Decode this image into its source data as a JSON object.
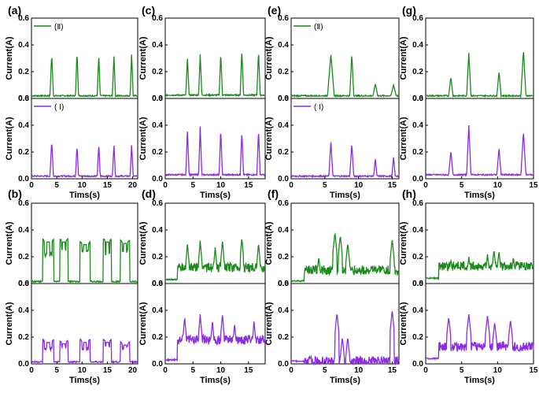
{
  "chart_data": {
    "type": "line",
    "description_layout": "4 columns x 2 rows of panels; each panel has two stacked subplots sharing the time axis",
    "colors": {
      "II": "#1a8a1a",
      "I": "#8b2be2"
    },
    "ylabel": "Current(A)",
    "xlabel": "Tims(s)",
    "ylim": [
      0,
      0.6
    ],
    "yticks": [
      "0.0",
      "0.2",
      "0.4",
      "0.6"
    ],
    "legend": {
      "II": "(Ⅱ)",
      "I": "( Ⅰ)"
    },
    "panels": [
      {
        "label": "(a)",
        "xlim": [
          0,
          21
        ],
        "xticks": [
          0,
          5,
          10,
          15,
          20
        ],
        "legend": true,
        "style": "peaks",
        "series": [
          {
            "name": "(Ⅱ)",
            "peaks": [
              [
                4,
                0.33,
                0.35
              ],
              [
                9,
                0.35,
                0.3
              ],
              [
                13.3,
                0.33,
                0.3
              ],
              [
                16.3,
                0.33,
                0.3
              ],
              [
                19.8,
                0.34,
                0.3
              ]
            ],
            "baseline": 0.02
          },
          {
            "name": "( Ⅰ)",
            "peaks": [
              [
                4,
                0.28,
                0.35
              ],
              [
                9,
                0.25,
                0.3
              ],
              [
                13.3,
                0.26,
                0.3
              ],
              [
                16.3,
                0.26,
                0.3
              ],
              [
                19.8,
                0.26,
                0.3
              ]
            ],
            "baseline": 0.02
          }
        ]
      },
      {
        "label": "(c)",
        "xlim": [
          0,
          18
        ],
        "xticks": [
          0,
          5,
          10,
          15
        ],
        "legend": false,
        "style": "peaks",
        "series": [
          {
            "name": "(Ⅱ)",
            "peaks": [
              [
                4,
                0.31,
                0.3
              ],
              [
                6.3,
                0.33,
                0.3
              ],
              [
                10,
                0.34,
                0.3
              ],
              [
                13.8,
                0.36,
                0.3
              ],
              [
                16.8,
                0.35,
                0.3
              ]
            ],
            "baseline": 0.025
          },
          {
            "name": "( Ⅰ)",
            "peaks": [
              [
                4,
                0.37,
                0.3
              ],
              [
                6.3,
                0.39,
                0.3
              ],
              [
                10,
                0.37,
                0.3
              ],
              [
                13.8,
                0.35,
                0.3
              ],
              [
                16.8,
                0.36,
                0.3
              ]
            ],
            "baseline": 0.03
          }
        ]
      },
      {
        "label": "(e)",
        "xlim": [
          0,
          16
        ],
        "xticks": [
          0,
          5,
          10,
          15
        ],
        "legend": true,
        "style": "peaks",
        "series": [
          {
            "name": "(Ⅱ)",
            "peaks": [
              [
                5.9,
                0.33,
                0.5
              ],
              [
                9,
                0.33,
                0.3
              ],
              [
                12.5,
                0.11,
                0.35
              ],
              [
                15.2,
                0.1,
                0.4
              ]
            ],
            "baseline": 0.02
          },
          {
            "name": "( Ⅰ)",
            "peaks": [
              [
                5.9,
                0.28,
                0.3
              ],
              [
                9,
                0.26,
                0.3
              ],
              [
                12.5,
                0.15,
                0.25
              ],
              [
                15.2,
                0.16,
                0.25
              ]
            ],
            "baseline": 0.02
          }
        ]
      },
      {
        "label": "(g)",
        "xlim": [
          0,
          15
        ],
        "xticks": [
          0,
          5,
          10,
          15
        ],
        "legend": false,
        "style": "peaks",
        "series": [
          {
            "name": "(Ⅱ)",
            "peaks": [
              [
                3.5,
                0.16,
                0.3
              ],
              [
                6,
                0.34,
                0.3
              ],
              [
                10.2,
                0.2,
                0.3
              ],
              [
                13.6,
                0.36,
                0.35
              ]
            ],
            "baseline": 0.02
          },
          {
            "name": "( Ⅰ)",
            "peaks": [
              [
                3.5,
                0.21,
                0.3
              ],
              [
                6,
                0.4,
                0.3
              ],
              [
                10.2,
                0.23,
                0.3
              ],
              [
                13.6,
                0.35,
                0.35
              ]
            ],
            "baseline": 0.03
          }
        ]
      },
      {
        "label": "(b)",
        "xlim": [
          0,
          21
        ],
        "xticks": [
          0,
          5,
          10,
          15,
          20
        ],
        "legend": false,
        "style": "plateaus",
        "series": [
          {
            "name": "(Ⅱ)",
            "plateaus": [
              [
                2.2,
                4.4,
                0.2,
                0.33
              ],
              [
                5.6,
                7.2,
                0.24,
                0.33
              ],
              [
                9.6,
                11.6,
                0.22,
                0.31
              ],
              [
                14.2,
                15.8,
                0.2,
                0.33
              ],
              [
                17.6,
                19.4,
                0.22,
                0.32
              ]
            ],
            "baseline": 0.015
          },
          {
            "name": "( Ⅰ)",
            "plateaus": [
              [
                2.2,
                4.4,
                0.1,
                0.18
              ],
              [
                5.6,
                7.2,
                0.1,
                0.17
              ],
              [
                9.6,
                11.6,
                0.1,
                0.18
              ],
              [
                14.2,
                15.8,
                0.12,
                0.18
              ],
              [
                17.6,
                19.4,
                0.1,
                0.16
              ]
            ],
            "baseline": 0.015
          }
        ]
      },
      {
        "label": "(d)",
        "xlim": [
          0,
          18
        ],
        "xticks": [
          0,
          5,
          10,
          15
        ],
        "legend": false,
        "style": "noisy",
        "series": [
          {
            "name": "(Ⅱ)",
            "spikes": [
              [
                4,
                0.3
              ],
              [
                6.3,
                0.32
              ],
              [
                9,
                0.27
              ],
              [
                10.3,
                0.32
              ],
              [
                13.8,
                0.34
              ],
              [
                16.8,
                0.3
              ]
            ],
            "level": 0.12,
            "baseline": 0.03
          },
          {
            "name": "( Ⅰ)",
            "spikes": [
              [
                3.5,
                0.35
              ],
              [
                6.3,
                0.37
              ],
              [
                8.5,
                0.32
              ],
              [
                10.3,
                0.37
              ],
              [
                12.5,
                0.3
              ],
              [
                16,
                0.32
              ]
            ],
            "level": 0.18,
            "baseline": 0.03
          }
        ]
      },
      {
        "label": "(f)",
        "xlim": [
          0,
          16
        ],
        "xticks": [
          0,
          5,
          10,
          15
        ],
        "legend": false,
        "style": "noisy",
        "series": [
          {
            "name": "(Ⅱ)",
            "spikes": [
              [
                4.1,
                0.2
              ],
              [
                6.5,
                0.38
              ],
              [
                7.3,
                0.36
              ],
              [
                8.4,
                0.3
              ],
              [
                15,
                0.33
              ]
            ],
            "level": 0.1,
            "baseline": 0.02
          },
          {
            "name": "( Ⅰ)",
            "spikes": [
              [
                6.8,
                0.38
              ],
              [
                7.6,
                0.2
              ],
              [
                8.4,
                0.2
              ],
              [
                15,
                0.4
              ]
            ],
            "level": 0.02,
            "baseline": 0.02
          }
        ]
      },
      {
        "label": "(h)",
        "xlim": [
          0,
          15
        ],
        "xticks": [
          0,
          5,
          10,
          15
        ],
        "legend": false,
        "style": "noisy",
        "series": [
          {
            "name": "(Ⅱ)",
            "spikes": [
              [
                3.5,
                0.18
              ],
              [
                6,
                0.2
              ],
              [
                8.6,
                0.22
              ],
              [
                9.5,
                0.25
              ],
              [
                10.2,
                0.24
              ],
              [
                12.2,
                0.2
              ]
            ],
            "level": 0.13,
            "baseline": 0.04
          },
          {
            "name": "( Ⅰ)",
            "spikes": [
              [
                3.2,
                0.35
              ],
              [
                6,
                0.37
              ],
              [
                8.6,
                0.36
              ],
              [
                9.6,
                0.31
              ],
              [
                11.8,
                0.33
              ]
            ],
            "level": 0.13,
            "baseline": 0.04
          }
        ]
      }
    ]
  }
}
